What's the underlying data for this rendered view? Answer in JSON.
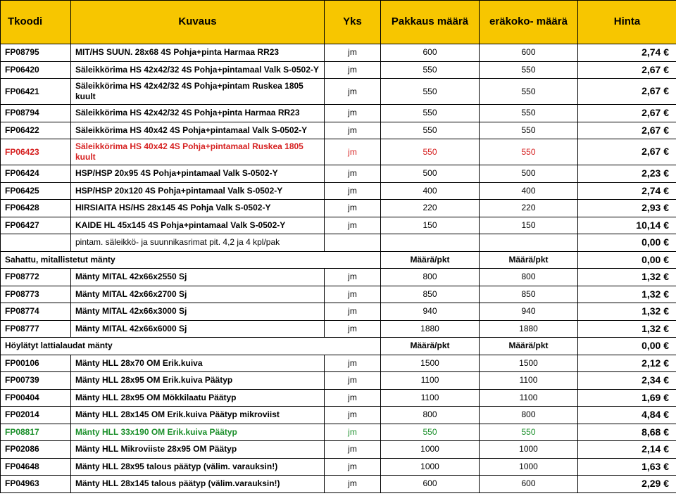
{
  "header": {
    "col_code": "Tkoodi",
    "col_desc": "Kuvaus",
    "col_unit": "Yks",
    "col_pack": "Pakkaus määrä",
    "col_batch": "eräkoko- määrä",
    "col_price": "Hinta"
  },
  "colors": {
    "header_bg": "#f7c600",
    "border": "#000000",
    "red": "#d62020",
    "green": "#1a8f2a",
    "text": "#000000",
    "bg": "#ffffff"
  },
  "section_labels": {
    "maara_pkt": "Määrä/pkt"
  },
  "rows": [
    {
      "type": "data",
      "code": "FP08795",
      "desc": "MIT/HS SUUN. 28x68 4S Pohja+pinta Harmaa RR23",
      "unit": "jm",
      "pack": "600",
      "batch": "600",
      "price": "2,74 €"
    },
    {
      "type": "data",
      "code": "FP06420",
      "desc": "Säleikkörima HS 42x42/32 4S Pohja+pintamaal Valk S-0502-Y",
      "unit": "jm",
      "pack": "550",
      "batch": "550",
      "price": "2,67 €"
    },
    {
      "type": "data",
      "code": "FP06421",
      "desc": "Säleikkörima HS 42x42/32 4S Pohja+pintam Ruskea 1805 kuult",
      "unit": "jm",
      "pack": "550",
      "batch": "550",
      "price": "2,67 €"
    },
    {
      "type": "data",
      "code": "FP08794",
      "desc": "Säleikkörima HS 42x42/32 4S Pohja+pinta Harmaa RR23",
      "unit": "jm",
      "pack": "550",
      "batch": "550",
      "price": "2,67 €"
    },
    {
      "type": "data",
      "code": "FP06422",
      "desc": "Säleikkörima HS 40x42 4S Pohja+pintamaal Valk S-0502-Y",
      "unit": "jm",
      "pack": "550",
      "batch": "550",
      "price": "2,67 €"
    },
    {
      "type": "data",
      "code": "FP06423",
      "desc": "Säleikkörima HS 40x42 4S Pohja+pintamaal Ruskea 1805 kuult",
      "unit": "jm",
      "pack": "550",
      "batch": "550",
      "price": "2,67 €",
      "color": "red"
    },
    {
      "type": "data",
      "code": "FP06424",
      "desc": "HSP/HSP 20x95 4S Pohja+pintamaal Valk S-0502-Y",
      "unit": "jm",
      "pack": "500",
      "batch": "500",
      "price": "2,23 €"
    },
    {
      "type": "data",
      "code": "FP06425",
      "desc": "HSP/HSP 20x120 4S Pohja+pintamaal Valk S-0502-Y",
      "unit": "jm",
      "pack": "400",
      "batch": "400",
      "price": "2,74 €"
    },
    {
      "type": "data",
      "code": "FP06428",
      "desc": "HIRSIAITA HS/HS 28x145 4S Pohja Valk S-0502-Y",
      "unit": "jm",
      "pack": "220",
      "batch": "220",
      "price": "2,93 €"
    },
    {
      "type": "data",
      "code": "FP06427",
      "desc": "KAIDE HL 45x145 4S Pohja+pintamaal Valk S-0502-Y",
      "unit": "jm",
      "pack": "150",
      "batch": "150",
      "price": "10,14 €"
    },
    {
      "type": "note",
      "desc": "pintam. säleikkö- ja suunnikasrimat pit. 4,2 ja 4 kpl/pak",
      "price": "0,00 €"
    },
    {
      "type": "section",
      "label": "Sahattu, mitallistetut mänty",
      "price": "0,00 €"
    },
    {
      "type": "data",
      "code": "FP08772",
      "desc": "Mänty MITAL 42x66x2550 Sj",
      "unit": "jm",
      "pack": "800",
      "batch": "800",
      "price": "1,32 €"
    },
    {
      "type": "data",
      "code": "FP08773",
      "desc": "Mänty MITAL 42x66x2700 Sj",
      "unit": "jm",
      "pack": "850",
      "batch": "850",
      "price": "1,32 €"
    },
    {
      "type": "data",
      "code": "FP08774",
      "desc": "Mänty MITAL 42x66x3000 Sj",
      "unit": "jm",
      "pack": "940",
      "batch": "940",
      "price": "1,32 €"
    },
    {
      "type": "data",
      "code": "FP08777",
      "desc": "Mänty MITAL 42x66x6000 Sj",
      "unit": "jm",
      "pack": "1880",
      "batch": "1880",
      "price": "1,32 €"
    },
    {
      "type": "section",
      "label": "Höylätyt lattialaudat mänty",
      "price": "0,00 €"
    },
    {
      "type": "data",
      "code": "FP00106",
      "desc": "Mänty HLL 28x70 OM Erik.kuiva",
      "unit": "jm",
      "pack": "1500",
      "batch": "1500",
      "price": "2,12 €"
    },
    {
      "type": "data",
      "code": "FP00739",
      "desc": "Mänty HLL 28x95 OM Erik.kuiva Päätyp",
      "unit": "jm",
      "pack": "1100",
      "batch": "1100",
      "price": "2,34 €"
    },
    {
      "type": "data",
      "code": "FP00404",
      "desc": "Mänty HLL 28x95 OM Mökkilaatu Päätyp",
      "unit": "jm",
      "pack": "1100",
      "batch": "1100",
      "price": "1,69 €"
    },
    {
      "type": "data",
      "code": "FP02014",
      "desc": "Mänty HLL 28x145 OM Erik.kuiva Päätyp mikroviist",
      "unit": "jm",
      "pack": "800",
      "batch": "800",
      "price": "4,84 €"
    },
    {
      "type": "data",
      "code": "FP08817",
      "desc": "Mänty HLL 33x190 OM Erik.kuiva Päätyp",
      "unit": "jm",
      "pack": "550",
      "batch": "550",
      "price": "8,68 €",
      "color": "green"
    },
    {
      "type": "data",
      "code": "FP02086",
      "desc": "Mänty HLL Mikroviiste 28x95 OM Päätyp",
      "unit": "jm",
      "pack": "1000",
      "batch": "1000",
      "price": "2,14 €"
    },
    {
      "type": "data",
      "code": "FP04648",
      "desc": "Mänty HLL 28x95 talous päätyp (välim. varauksin!)",
      "unit": "jm",
      "pack": "1000",
      "batch": "1000",
      "price": "1,63 €"
    },
    {
      "type": "data",
      "code": "FP04963",
      "desc": "Mänty HLL 28x145 talous päätyp (välim.varauksin!)",
      "unit": "jm",
      "pack": "600",
      "batch": "600",
      "price": "2,29 €"
    }
  ]
}
